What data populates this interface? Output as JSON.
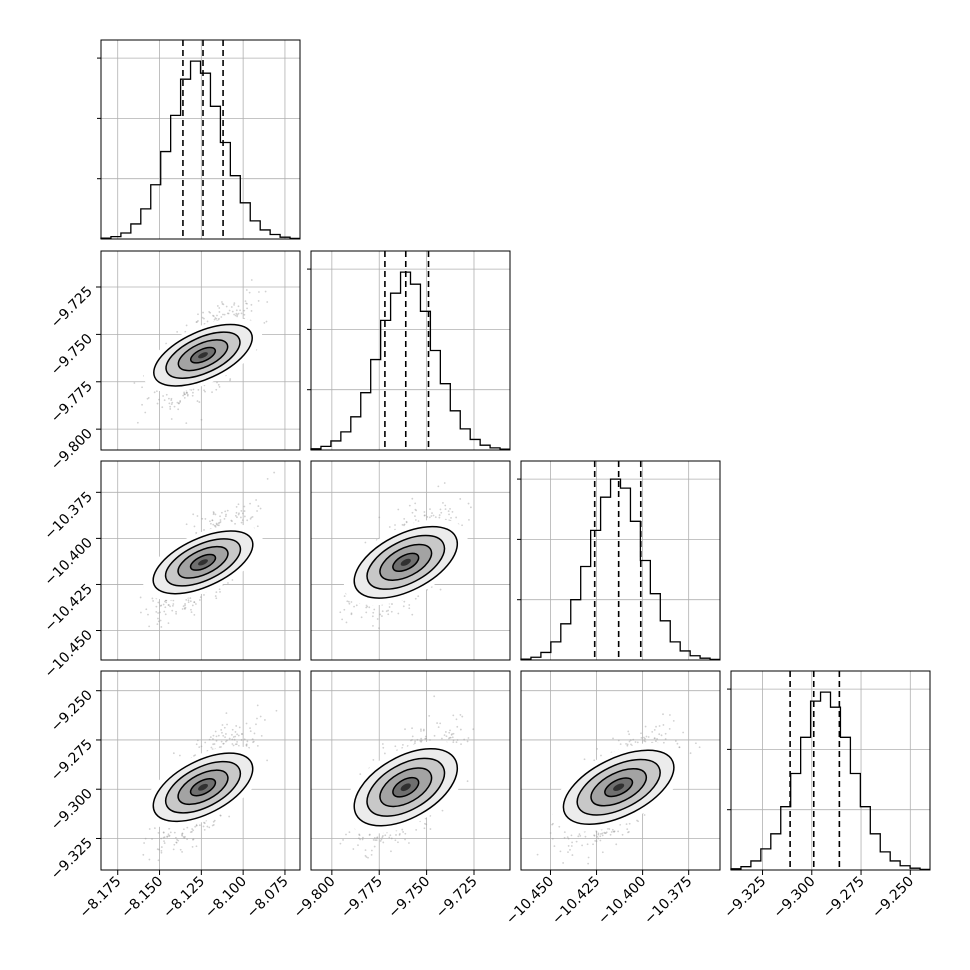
{
  "chart_data": {
    "type": "corner",
    "parameters": [
      {
        "ticks": [
          "−8.175",
          "−8.150",
          "−8.125",
          "−8.100",
          "−8.075"
        ],
        "tick_values": [
          -8.175,
          -8.15,
          -8.125,
          -8.1,
          -8.075
        ],
        "range": [
          -8.185,
          -8.066
        ],
        "quantiles": [
          -8.136,
          -8.124,
          -8.112
        ],
        "hist": [
          0.3,
          0.8,
          2,
          5,
          10,
          18,
          29,
          41,
          53,
          59,
          55,
          44,
          32,
          21,
          12,
          6,
          3,
          1.5,
          0.6,
          0.2
        ]
      },
      {
        "ticks": [
          "−9.800",
          "−9.775",
          "−9.750",
          "−9.725"
        ],
        "tick_values": [
          -9.8,
          -9.775,
          -9.75,
          -9.725
        ],
        "range": [
          -9.811,
          -9.706
        ],
        "quantiles": [
          -9.772,
          -9.761,
          -9.749
        ],
        "hist": [
          0.4,
          1.2,
          3,
          6,
          11,
          19,
          30,
          43,
          52,
          59,
          55,
          46,
          33,
          22,
          13,
          7,
          3.5,
          1.6,
          0.7,
          0.3
        ]
      },
      {
        "ticks": [
          "−10.450",
          "−10.425",
          "−10.400",
          "−10.375"
        ],
        "tick_values": [
          -10.45,
          -10.425,
          -10.4,
          -10.375
        ],
        "range": [
          -10.466,
          -10.358
        ],
        "quantiles": [
          -10.426,
          -10.413,
          -10.401
        ],
        "hist": [
          0.3,
          0.9,
          2.5,
          6,
          12,
          20,
          31,
          43,
          54,
          60,
          57,
          46,
          33,
          22,
          13,
          6,
          3,
          1.4,
          0.6,
          0.2
        ]
      },
      {
        "ticks": [
          "−9.325",
          "−9.300",
          "−9.275",
          "−9.250"
        ],
        "tick_values": [
          -9.325,
          -9.3,
          -9.275,
          -9.25
        ],
        "range": [
          -9.341,
          -9.24
        ],
        "quantiles": [
          -9.311,
          -9.299,
          -9.286
        ],
        "hist": [
          0.4,
          1.1,
          3,
          7,
          12,
          21,
          32,
          44,
          56,
          59,
          54,
          44,
          32,
          21,
          12,
          6,
          3,
          1.4,
          0.6,
          0.2
        ]
      }
    ],
    "pairs": [
      {
        "row": 1,
        "col": 0,
        "rho": 0.7
      },
      {
        "row": 2,
        "col": 0,
        "rho": 0.72
      },
      {
        "row": 2,
        "col": 1,
        "rho": 0.62
      },
      {
        "row": 3,
        "col": 0,
        "rho": 0.7
      },
      {
        "row": 3,
        "col": 1,
        "rho": 0.6
      },
      {
        "row": 3,
        "col": 2,
        "rho": 0.65
      }
    ],
    "contour_sigma_levels": [
      0.5,
      1.0,
      1.5,
      2.0
    ],
    "grid": true,
    "colors": {
      "line": "#000000",
      "grid": "#b0b0b0",
      "scatter": "#9a9a9a"
    }
  }
}
